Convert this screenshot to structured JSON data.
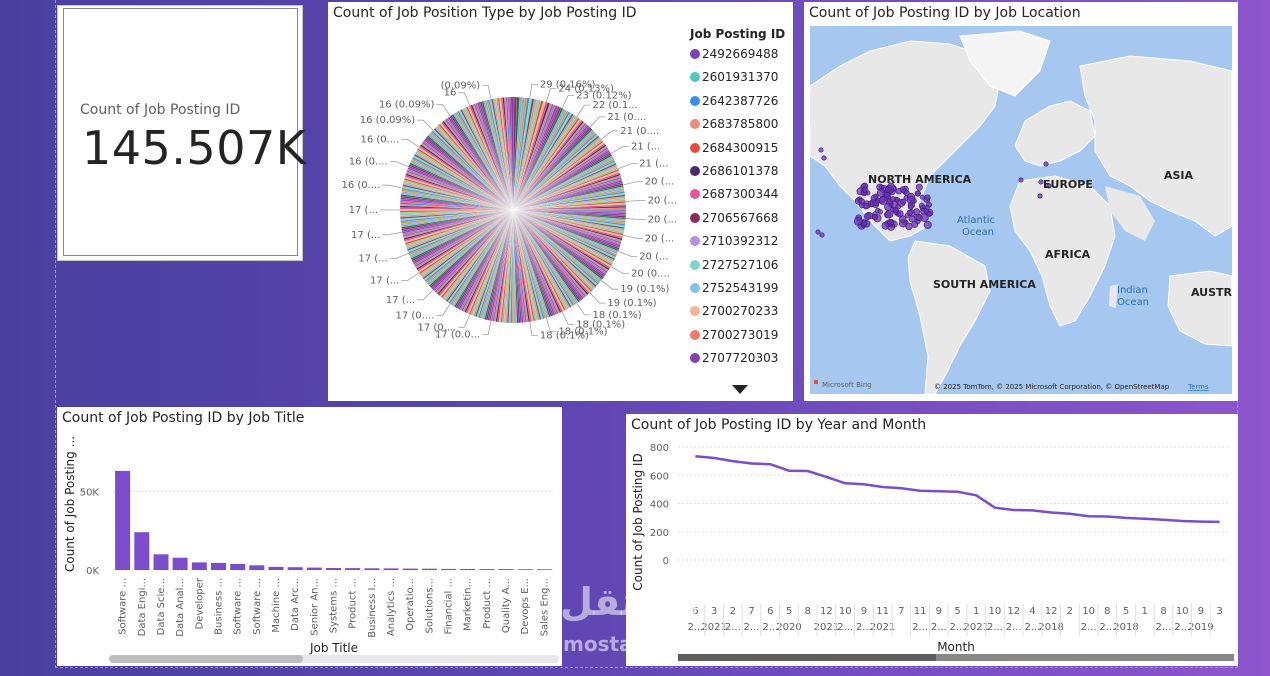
{
  "card": {
    "label": "Count of Job Posting ID",
    "value": "145.507K"
  },
  "pie": {
    "title": "Count of Job Position Type by Job Posting ID",
    "legend_title": "Job Posting ID",
    "legend_items": [
      {
        "label": "2492669488",
        "color": "#7c3fc4"
      },
      {
        "label": "2601931370",
        "color": "#4fc9c0"
      },
      {
        "label": "2642387726",
        "color": "#3a8ee6"
      },
      {
        "label": "2683785800",
        "color": "#f08a7e"
      },
      {
        "label": "2684300915",
        "color": "#e84a3c"
      },
      {
        "label": "2686101378",
        "color": "#4b2a6b"
      },
      {
        "label": "2687300344",
        "color": "#e8559a"
      },
      {
        "label": "2706567668",
        "color": "#8f2a5a"
      },
      {
        "label": "2710392312",
        "color": "#b98ee6"
      },
      {
        "label": "2727527106",
        "color": "#7fd6cc"
      },
      {
        "label": "2752543199",
        "color": "#7fc4e6"
      },
      {
        "label": "2700270233",
        "color": "#f4b29a"
      },
      {
        "label": "2700273019",
        "color": "#f07a70"
      },
      {
        "label": "2707720303",
        "color": "#8a3fb0"
      }
    ],
    "slice_labels": [
      "29 (0.16%)",
      "24 (0.13%)",
      "23 (0.12%)",
      "22 (0.1...",
      "21 (0....",
      "21 (0....",
      "21 (...",
      "21 (...",
      "20 (...",
      "20 (...",
      "20 (...",
      "20 (...",
      "20 (...",
      "20 (0....",
      "19 (0.1%)",
      "19 (0.1%)",
      "18 (0.1%)",
      "18 (0.1%)",
      "18 (0.1%)",
      "18 (0.1%)",
      "17 (0.0...",
      "17 (0....",
      "17 (0....",
      "17 (...",
      "17 (...",
      "17 (...",
      "17 (...",
      "17 (...",
      "16 (0....",
      "16 (0....",
      "16 (0....",
      "16 (0.09%)",
      "16 (0.09%)",
      "16",
      "(0.09%)"
    ]
  },
  "map": {
    "title": "Count of Job Posting ID by Job Location",
    "labels": {
      "north_america": "NORTH AMERICA",
      "europe": "EUROPE",
      "asia": "ASIA",
      "africa": "AFRICA",
      "south_america": "SOUTH AMERICA",
      "australia": "AUSTRA",
      "atlantic": "Atlantic",
      "atlantic2": "Ocean",
      "indian": "Indian",
      "indian2": "Ocean"
    },
    "bing": "Microsoft Bing",
    "copyright": "© 2025 TomTom, © 2025 Microsoft Corporation, © OpenStreetMap",
    "terms": "Terms",
    "dot_color": "#6b2fb8"
  },
  "bar": {
    "title": "Count of Job Posting ID by Job Title",
    "xlabel": "Job Title",
    "ylabel": "Count of Job Posting ...",
    "ytick_labels": [
      "0K",
      "50K"
    ],
    "bar_color": "#7b4ccc"
  },
  "line": {
    "title": "Count of Job Posting ID by Year and Month",
    "xlabel": "Month",
    "ylabel": "Count of Job Posting ID",
    "ytick_labels": [
      "0",
      "200",
      "400",
      "600",
      "800"
    ],
    "month_labels": [
      "6",
      "3",
      "2",
      "7",
      "6",
      "5",
      "8",
      "12",
      "10",
      "9",
      "11",
      "7",
      "11",
      "9",
      "5",
      "1",
      "10",
      "12",
      "4",
      "12",
      "2",
      "10",
      "8",
      "5",
      "1",
      "8",
      "10",
      "9",
      "3"
    ],
    "year_labels": [
      "2...",
      "2021",
      "2...",
      "2...",
      "2...",
      "2020",
      "",
      "2021",
      "2...",
      "2...",
      "2021",
      "",
      "2...",
      "2...",
      "2...",
      "2021",
      "2...",
      "2...",
      "2...",
      "2018",
      "",
      "2...",
      "2...",
      "2018",
      "",
      "2...",
      "2...",
      "2019",
      ""
    ],
    "line_color": "#7b4ccc"
  },
  "chart_data": [
    {
      "type": "bar",
      "title": "Count of Job Posting ID by Job Title",
      "xlabel": "Job Title",
      "ylabel": "Count of Job Posting ...",
      "ylim": [
        0,
        75000
      ],
      "categories": [
        "Software ...",
        "Data Engi...",
        "Data Scie...",
        "Data Anal...",
        "Developer",
        "Business ...",
        "Software ...",
        "Software ...",
        "Machine ...",
        "Data Arc...",
        "Senior An...",
        "Systems ...",
        "Product ...",
        "Business I...",
        "Analytics ...",
        "Operatio...",
        "Solutions...",
        "Financial ...",
        "Marketin...",
        "Product ...",
        "Quality A...",
        "Devops E...",
        "Sales Eng..."
      ],
      "values": [
        63000,
        24000,
        10000,
        7800,
        4800,
        4500,
        3800,
        3000,
        2000,
        1800,
        1500,
        1300,
        1200,
        1100,
        1000,
        900,
        800,
        700,
        650,
        600,
        550,
        500,
        450
      ]
    },
    {
      "type": "line",
      "title": "Count of Job Posting ID by Year and Month",
      "xlabel": "Month",
      "ylabel": "Count of Job Posting ID",
      "ylim": [
        0,
        800
      ],
      "x": [
        "6 2...",
        "3 2021",
        "2 2...",
        "7 2...",
        "6 2...",
        "5 2020",
        "8",
        "12 2021",
        "10 2...",
        "9 2...",
        "11 2021",
        "7",
        "11 2...",
        "9 2...",
        "5 2...",
        "1 2021",
        "10 2...",
        "12 2...",
        "4 2...",
        "12 2018",
        "2",
        "10 2...",
        "8 2...",
        "5 2018",
        "1",
        "8 2...",
        "10 2...",
        "9 2019",
        "3"
      ],
      "values": [
        735,
        722,
        700,
        683,
        678,
        632,
        630,
        588,
        543,
        536,
        517,
        508,
        490,
        487,
        483,
        458,
        370,
        354,
        351,
        336,
        327,
        310,
        308,
        298,
        292,
        285,
        276,
        272,
        270
      ]
    },
    {
      "type": "pie",
      "title": "Count of Job Position Type by Job Posting ID",
      "legend_title": "Job Posting ID",
      "categories": [
        "2492669488",
        "2601931370",
        "2642387726",
        "2683785800",
        "2684300915",
        "2686101378",
        "2687300344",
        "2706567668",
        "2710392312",
        "2727527106",
        "2752543199",
        "2700270233",
        "2700273019",
        "2707720303"
      ],
      "visible_slice_values": [
        29,
        24,
        23,
        22,
        21,
        21,
        21,
        21,
        20,
        20,
        20,
        20,
        20,
        20,
        19,
        19,
        18,
        18,
        18,
        18,
        17,
        17,
        17,
        17,
        17,
        17,
        17,
        17,
        16,
        16,
        16,
        16,
        16,
        16
      ],
      "visible_slice_percents": [
        "0.16%",
        "0.13%",
        "0.12%",
        "",
        "",
        "",
        "",
        "",
        "",
        "",
        "",
        "",
        "",
        "",
        "0.1%",
        "0.1%",
        "0.1%",
        "0.1%",
        "0.1%",
        "0.1%",
        "",
        "",
        "",
        "",
        "",
        "",
        "",
        "",
        "",
        "",
        "",
        "0.09%",
        "0.09%",
        "0.09%"
      ]
    }
  ]
}
